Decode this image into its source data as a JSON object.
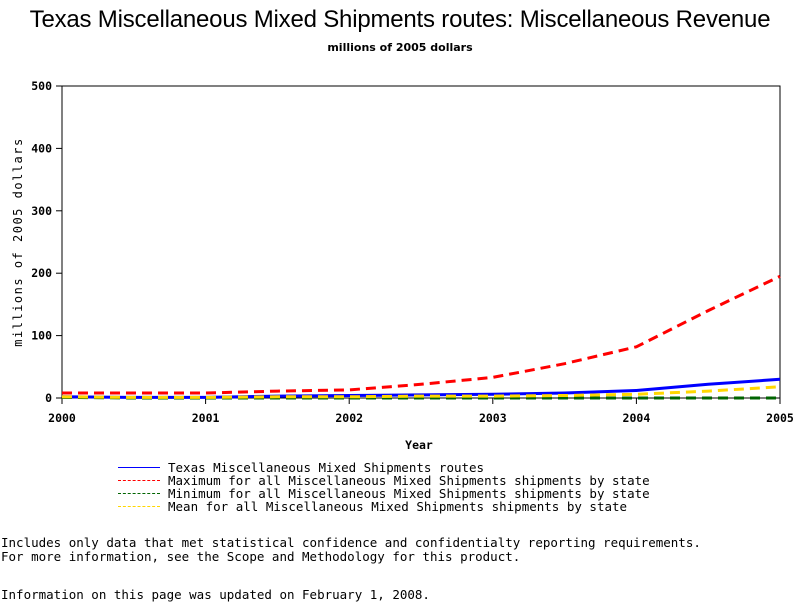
{
  "title": "Texas Miscellaneous Mixed Shipments routes: Miscellaneous Revenue",
  "subtitle": "millions of 2005 dollars",
  "chart_data": {
    "type": "line",
    "xlabel": "Year",
    "ylabel": "millions of 2005 dollars",
    "xlim": [
      2000,
      2005
    ],
    "ylim": [
      0,
      500
    ],
    "x_ticks": [
      "2000",
      "2001",
      "2002",
      "2003",
      "2004",
      "2005"
    ],
    "y_ticks": [
      "0",
      "100",
      "200",
      "300",
      "400",
      "500"
    ],
    "grid": false,
    "legend_position": "bottom",
    "series": [
      {
        "name": "Texas Miscellaneous Mixed Shipments routes",
        "color": "#0000ff",
        "style": "solid",
        "x": [
          2000,
          2000.5,
          2001,
          2001.5,
          2002,
          2002.5,
          2003,
          2003.5,
          2004,
          2004.5,
          2005
        ],
        "values": [
          2,
          1,
          1,
          3,
          4,
          5,
          6,
          8,
          12,
          22,
          30
        ]
      },
      {
        "name": "Maximum for all Miscellaneous Mixed Shipments shipments by state",
        "color": "#ff0000",
        "style": "dashed",
        "x": [
          2000,
          2000.5,
          2001,
          2001.5,
          2002,
          2002.5,
          2003,
          2003.5,
          2004,
          2004.5,
          2005
        ],
        "values": [
          8,
          8,
          8,
          11,
          13,
          22,
          33,
          55,
          82,
          140,
          195
        ]
      },
      {
        "name": "Minimum for all Miscellaneous Mixed Shipments shipments by state",
        "color": "#006400",
        "style": "dashed",
        "x": [
          2000,
          2000.5,
          2001,
          2001.5,
          2002,
          2002.5,
          2003,
          2003.5,
          2004,
          2004.5,
          2005
        ],
        "values": [
          1,
          0,
          0,
          0,
          0,
          0,
          0,
          0,
          0,
          0,
          0
        ]
      },
      {
        "name": "Mean for all Miscellaneous Mixed Shipments shipments by state",
        "color": "#ffd700",
        "style": "dashed",
        "x": [
          2000,
          2000.5,
          2001,
          2001.5,
          2002,
          2002.5,
          2003,
          2003.5,
          2004,
          2004.5,
          2005
        ],
        "values": [
          2,
          1,
          1,
          2,
          2,
          3,
          3,
          4,
          6,
          11,
          18
        ]
      }
    ]
  },
  "notes": {
    "line1": "Includes only data that met statistical confidence and confidentialty reporting requirements.",
    "line2": "For more information, see the Scope and Methodology for this product."
  },
  "updated": "Information on this page was updated on February 1, 2008."
}
